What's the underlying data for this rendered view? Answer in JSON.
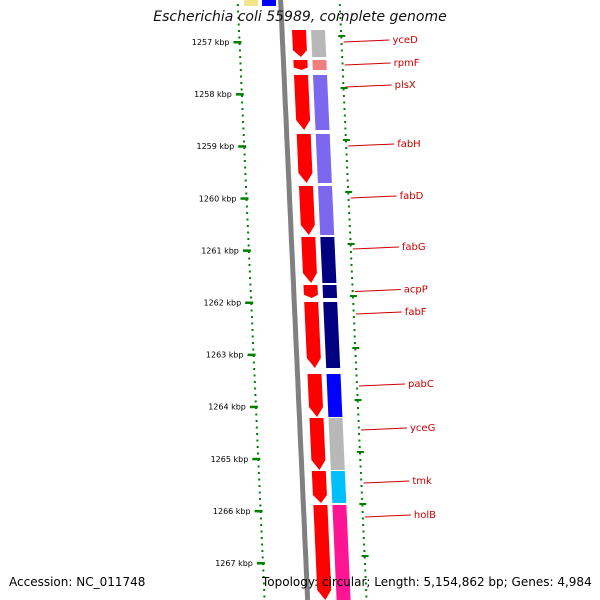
{
  "title": "Escherichia coli 55989, complete genome",
  "footer": {
    "accession_label": "Accession:",
    "accession": "NC_011748",
    "topology_label": "Topology:",
    "topology": "circular;",
    "length_label": "Length:",
    "length": "5,154,862 bp;",
    "genes_label": "Genes:",
    "genes": "4,984"
  },
  "ticks": [
    "1257 kbp",
    "1258 kbp",
    "1259 kbp",
    "1260 kbp",
    "1261 kbp",
    "1262 kbp",
    "1263 kbp",
    "1264 kbp",
    "1265 kbp",
    "1266 kbp",
    "1267 kbp"
  ],
  "genes": [
    {
      "name": "yceD",
      "cog_color": "#b8b8b8"
    },
    {
      "name": "rpmF",
      "cog_color": "#f08080"
    },
    {
      "name": "plsX",
      "cog_color": "#7b68ee"
    },
    {
      "name": "fabH",
      "cog_color": "#7b68ee"
    },
    {
      "name": "fabD",
      "cog_color": "#7b68ee"
    },
    {
      "name": "fabG",
      "cog_color": "#000080"
    },
    {
      "name": "acpP",
      "cog_color": "#000080"
    },
    {
      "name": "fabF",
      "cog_color": "#000080"
    },
    {
      "name": "pabC",
      "cog_color": "#0000ff"
    },
    {
      "name": "yceG",
      "cog_color": "#b8b8b8"
    },
    {
      "name": "tmk",
      "cog_color": "#00bfff"
    },
    {
      "name": "holB",
      "cog_color": "#ff1493"
    }
  ],
  "colors": {
    "cds": "#ff0000",
    "tick": "#008000",
    "label": "#cc0000",
    "backbone": "#808080"
  }
}
